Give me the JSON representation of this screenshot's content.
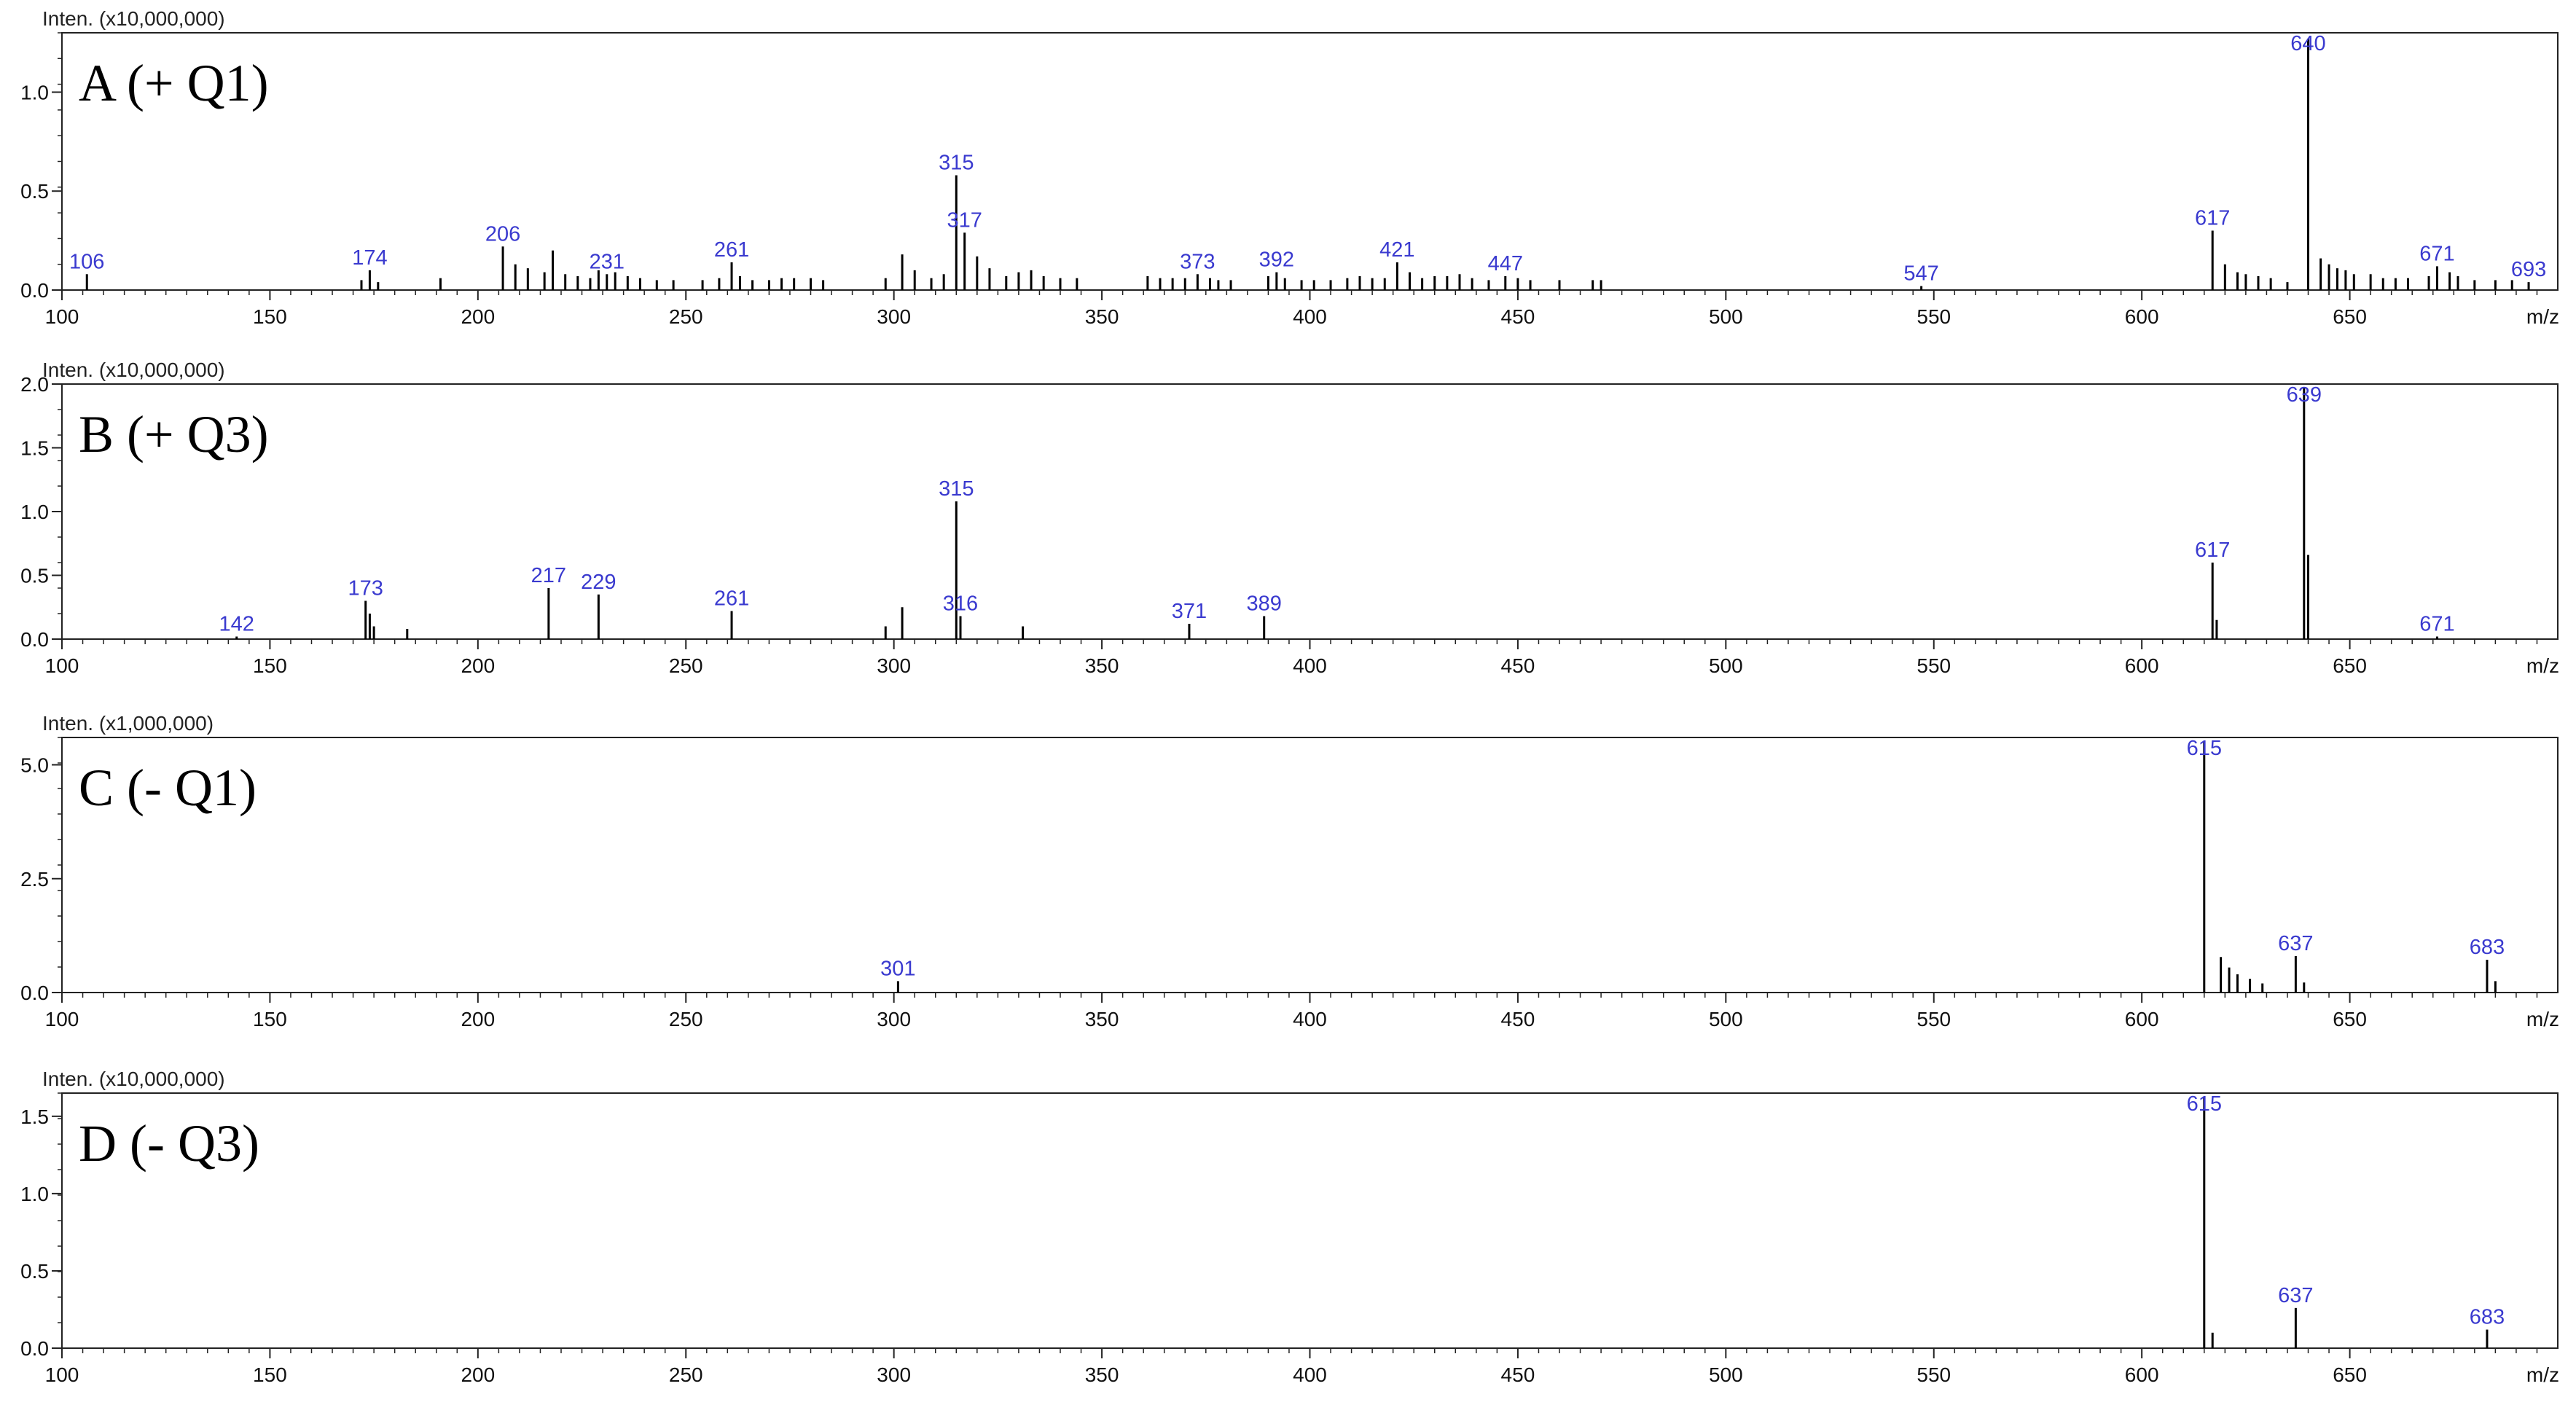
{
  "figure": {
    "x_unit_label": "m/z"
  },
  "chart_data": [
    {
      "type": "bar",
      "panel_label": "A (+ Q1)",
      "intensity_label": "Inten. (x10,000,000)",
      "xlabel": "m/z",
      "xlim": [
        100,
        700
      ],
      "ylim": [
        0,
        1.3
      ],
      "x_ticks": [
        100,
        150,
        200,
        250,
        300,
        350,
        400,
        450,
        500,
        550,
        600,
        650
      ],
      "y_ticks": [
        {
          "value": 0,
          "label": "0.0"
        },
        {
          "value": 0.5,
          "label": "0.5"
        },
        {
          "value": 1.0,
          "label": "1.0"
        }
      ],
      "peaks": [
        {
          "x": 106,
          "y": 0.08,
          "label": "106"
        },
        {
          "x": 174,
          "y": 0.1,
          "label": "174"
        },
        {
          "x": 206,
          "y": 0.22,
          "label": "206"
        },
        {
          "x": 231,
          "y": 0.08,
          "label": "231"
        },
        {
          "x": 261,
          "y": 0.14,
          "label": "261"
        },
        {
          "x": 315,
          "y": 0.58,
          "label": "315"
        },
        {
          "x": 317,
          "y": 0.29,
          "label": "317"
        },
        {
          "x": 373,
          "y": 0.08,
          "label": "373"
        },
        {
          "x": 392,
          "y": 0.09,
          "label": "392"
        },
        {
          "x": 421,
          "y": 0.14,
          "label": "421"
        },
        {
          "x": 447,
          "y": 0.07,
          "label": "447"
        },
        {
          "x": 547,
          "y": 0.02,
          "label": "547"
        },
        {
          "x": 617,
          "y": 0.3,
          "label": "617"
        },
        {
          "x": 640,
          "y": 1.27,
          "label": "640"
        },
        {
          "x": 671,
          "y": 0.12,
          "label": "671"
        },
        {
          "x": 693,
          "y": 0.04,
          "label": "693"
        },
        {
          "x": 172,
          "y": 0.05
        },
        {
          "x": 176,
          "y": 0.04
        },
        {
          "x": 191,
          "y": 0.06
        },
        {
          "x": 209,
          "y": 0.13
        },
        {
          "x": 212,
          "y": 0.11
        },
        {
          "x": 216,
          "y": 0.09
        },
        {
          "x": 218,
          "y": 0.2
        },
        {
          "x": 221,
          "y": 0.08
        },
        {
          "x": 224,
          "y": 0.07
        },
        {
          "x": 227,
          "y": 0.06
        },
        {
          "x": 229,
          "y": 0.1
        },
        {
          "x": 233,
          "y": 0.09
        },
        {
          "x": 236,
          "y": 0.07
        },
        {
          "x": 239,
          "y": 0.06
        },
        {
          "x": 243,
          "y": 0.05
        },
        {
          "x": 247,
          "y": 0.05
        },
        {
          "x": 254,
          "y": 0.05
        },
        {
          "x": 258,
          "y": 0.06
        },
        {
          "x": 263,
          "y": 0.07
        },
        {
          "x": 266,
          "y": 0.05
        },
        {
          "x": 270,
          "y": 0.05
        },
        {
          "x": 273,
          "y": 0.06
        },
        {
          "x": 276,
          "y": 0.06
        },
        {
          "x": 280,
          "y": 0.06
        },
        {
          "x": 283,
          "y": 0.05
        },
        {
          "x": 298,
          "y": 0.06
        },
        {
          "x": 302,
          "y": 0.18
        },
        {
          "x": 305,
          "y": 0.1
        },
        {
          "x": 309,
          "y": 0.06
        },
        {
          "x": 312,
          "y": 0.08
        },
        {
          "x": 320,
          "y": 0.17
        },
        {
          "x": 323,
          "y": 0.11
        },
        {
          "x": 327,
          "y": 0.07
        },
        {
          "x": 330,
          "y": 0.09
        },
        {
          "x": 333,
          "y": 0.1
        },
        {
          "x": 336,
          "y": 0.07
        },
        {
          "x": 340,
          "y": 0.06
        },
        {
          "x": 344,
          "y": 0.06
        },
        {
          "x": 361,
          "y": 0.07
        },
        {
          "x": 364,
          "y": 0.06
        },
        {
          "x": 367,
          "y": 0.06
        },
        {
          "x": 370,
          "y": 0.06
        },
        {
          "x": 376,
          "y": 0.06
        },
        {
          "x": 378,
          "y": 0.05
        },
        {
          "x": 381,
          "y": 0.05
        },
        {
          "x": 390,
          "y": 0.07
        },
        {
          "x": 394,
          "y": 0.06
        },
        {
          "x": 398,
          "y": 0.05
        },
        {
          "x": 401,
          "y": 0.05
        },
        {
          "x": 405,
          "y": 0.05
        },
        {
          "x": 409,
          "y": 0.06
        },
        {
          "x": 412,
          "y": 0.07
        },
        {
          "x": 415,
          "y": 0.06
        },
        {
          "x": 418,
          "y": 0.06
        },
        {
          "x": 424,
          "y": 0.09
        },
        {
          "x": 427,
          "y": 0.06
        },
        {
          "x": 430,
          "y": 0.07
        },
        {
          "x": 433,
          "y": 0.07
        },
        {
          "x": 436,
          "y": 0.08
        },
        {
          "x": 439,
          "y": 0.06
        },
        {
          "x": 443,
          "y": 0.05
        },
        {
          "x": 450,
          "y": 0.06
        },
        {
          "x": 453,
          "y": 0.05
        },
        {
          "x": 460,
          "y": 0.05
        },
        {
          "x": 468,
          "y": 0.05
        },
        {
          "x": 470,
          "y": 0.05
        },
        {
          "x": 620,
          "y": 0.13
        },
        {
          "x": 623,
          "y": 0.09
        },
        {
          "x": 625,
          "y": 0.08
        },
        {
          "x": 628,
          "y": 0.07
        },
        {
          "x": 631,
          "y": 0.06
        },
        {
          "x": 635,
          "y": 0.04
        },
        {
          "x": 643,
          "y": 0.16
        },
        {
          "x": 645,
          "y": 0.13
        },
        {
          "x": 647,
          "y": 0.11
        },
        {
          "x": 649,
          "y": 0.1
        },
        {
          "x": 651,
          "y": 0.08
        },
        {
          "x": 655,
          "y": 0.08
        },
        {
          "x": 658,
          "y": 0.06
        },
        {
          "x": 661,
          "y": 0.06
        },
        {
          "x": 664,
          "y": 0.06
        },
        {
          "x": 669,
          "y": 0.07
        },
        {
          "x": 674,
          "y": 0.09
        },
        {
          "x": 676,
          "y": 0.07
        },
        {
          "x": 680,
          "y": 0.05
        },
        {
          "x": 685,
          "y": 0.05
        },
        {
          "x": 689,
          "y": 0.05
        }
      ]
    },
    {
      "type": "bar",
      "panel_label": "B (+ Q3)",
      "intensity_label": "Inten. (x10,000,000)",
      "xlabel": "m/z",
      "xlim": [
        100,
        700
      ],
      "ylim": [
        0,
        2.0
      ],
      "x_ticks": [
        100,
        150,
        200,
        250,
        300,
        350,
        400,
        450,
        500,
        550,
        600,
        650
      ],
      "y_ticks": [
        {
          "value": 0,
          "label": "0.0"
        },
        {
          "value": 0.5,
          "label": "0.5"
        },
        {
          "value": 1.0,
          "label": "1.0"
        },
        {
          "value": 1.5,
          "label": "1.5"
        },
        {
          "value": 2.0,
          "label": "2.0"
        }
      ],
      "peaks": [
        {
          "x": 142,
          "y": 0.02,
          "label": "142"
        },
        {
          "x": 173,
          "y": 0.3,
          "label": "173"
        },
        {
          "x": 217,
          "y": 0.4,
          "label": "217"
        },
        {
          "x": 229,
          "y": 0.35,
          "label": "229"
        },
        {
          "x": 261,
          "y": 0.22,
          "label": "261"
        },
        {
          "x": 315,
          "y": 1.08,
          "label": "315"
        },
        {
          "x": 316,
          "y": 0.18,
          "label": "316"
        },
        {
          "x": 371,
          "y": 0.12,
          "label": "371"
        },
        {
          "x": 389,
          "y": 0.18,
          "label": "389"
        },
        {
          "x": 617,
          "y": 0.6,
          "label": "617"
        },
        {
          "x": 639,
          "y": 1.97,
          "label": "639"
        },
        {
          "x": 671,
          "y": 0.02,
          "label": "671"
        },
        {
          "x": 174,
          "y": 0.2
        },
        {
          "x": 175,
          "y": 0.1
        },
        {
          "x": 183,
          "y": 0.08
        },
        {
          "x": 298,
          "y": 0.1
        },
        {
          "x": 302,
          "y": 0.25
        },
        {
          "x": 331,
          "y": 0.1
        },
        {
          "x": 618,
          "y": 0.15
        },
        {
          "x": 640,
          "y": 0.66
        }
      ]
    },
    {
      "type": "bar",
      "panel_label": "C (- Q1)",
      "intensity_label": "Inten. (x1,000,000)",
      "xlabel": "m/z",
      "xlim": [
        100,
        700
      ],
      "ylim": [
        0,
        5.6
      ],
      "x_ticks": [
        100,
        150,
        200,
        250,
        300,
        350,
        400,
        450,
        500,
        550,
        600,
        650
      ],
      "y_ticks": [
        {
          "value": 0,
          "label": "0.0"
        },
        {
          "value": 2.5,
          "label": "2.5"
        },
        {
          "value": 5.0,
          "label": "5.0"
        }
      ],
      "peaks": [
        {
          "x": 301,
          "y": 0.25,
          "label": "301"
        },
        {
          "x": 615,
          "y": 5.5,
          "label": "615"
        },
        {
          "x": 637,
          "y": 0.8,
          "label": "637"
        },
        {
          "x": 683,
          "y": 0.72,
          "label": "683"
        },
        {
          "x": 619,
          "y": 0.78
        },
        {
          "x": 621,
          "y": 0.55
        },
        {
          "x": 623,
          "y": 0.4
        },
        {
          "x": 626,
          "y": 0.3
        },
        {
          "x": 629,
          "y": 0.2
        },
        {
          "x": 639,
          "y": 0.22
        },
        {
          "x": 685,
          "y": 0.25
        }
      ]
    },
    {
      "type": "bar",
      "panel_label": "D (- Q3)",
      "intensity_label": "Inten. (x10,000,000)",
      "xlabel": "m/z",
      "xlim": [
        100,
        700
      ],
      "ylim": [
        0,
        1.65
      ],
      "x_ticks": [
        100,
        150,
        200,
        250,
        300,
        350,
        400,
        450,
        500,
        550,
        600,
        650
      ],
      "y_ticks": [
        {
          "value": 0,
          "label": "0.0"
        },
        {
          "value": 0.5,
          "label": "0.5"
        },
        {
          "value": 1.0,
          "label": "1.0"
        },
        {
          "value": 1.5,
          "label": "1.5"
        }
      ],
      "peaks": [
        {
          "x": 615,
          "y": 1.62,
          "label": "615"
        },
        {
          "x": 637,
          "y": 0.26,
          "label": "637"
        },
        {
          "x": 683,
          "y": 0.12,
          "label": "683"
        },
        {
          "x": 617,
          "y": 0.1
        }
      ]
    }
  ]
}
